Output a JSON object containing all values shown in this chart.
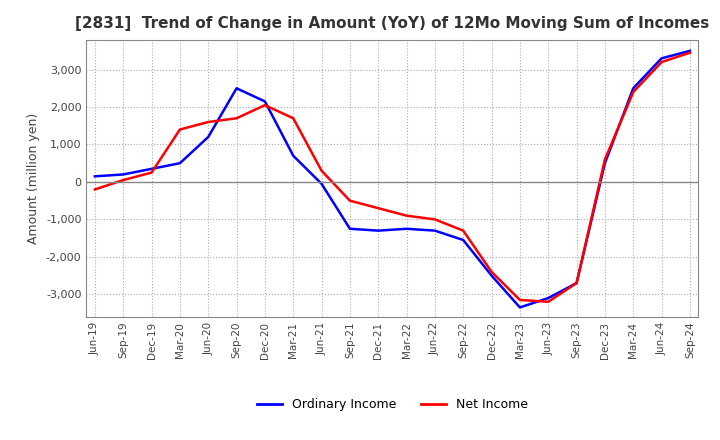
{
  "title": "[2831]  Trend of Change in Amount (YoY) of 12Mo Moving Sum of Incomes",
  "ylabel": "Amount (million yen)",
  "ylim": [
    -3600,
    3800
  ],
  "yticks": [
    -3000,
    -2000,
    -1000,
    0,
    1000,
    2000,
    3000
  ],
  "legend_labels": [
    "Ordinary Income",
    "Net Income"
  ],
  "line_colors": [
    "#0000ff",
    "#ff0000"
  ],
  "background_color": "#ffffff",
  "grid_color": "#aaaaaa",
  "title_color": "#333333",
  "x_labels": [
    "Jun-19",
    "Sep-19",
    "Dec-19",
    "Mar-20",
    "Jun-20",
    "Sep-20",
    "Dec-20",
    "Mar-21",
    "Jun-21",
    "Sep-21",
    "Dec-21",
    "Mar-22",
    "Jun-22",
    "Sep-22",
    "Dec-22",
    "Mar-23",
    "Jun-23",
    "Sep-23",
    "Dec-23",
    "Mar-24",
    "Jun-24",
    "Sep-24"
  ],
  "ordinary_income": [
    150,
    200,
    350,
    500,
    1200,
    2500,
    2150,
    700,
    -50,
    -1250,
    -1300,
    -1250,
    -1300,
    -1550,
    -2500,
    -3350,
    -3100,
    -2700,
    500,
    2500,
    3300,
    3500
  ],
  "net_income": [
    -200,
    50,
    250,
    1400,
    1600,
    1700,
    2050,
    1700,
    300,
    -500,
    -700,
    -900,
    -1000,
    -1300,
    -2400,
    -3150,
    -3200,
    -2700,
    600,
    2400,
    3200,
    3450
  ]
}
